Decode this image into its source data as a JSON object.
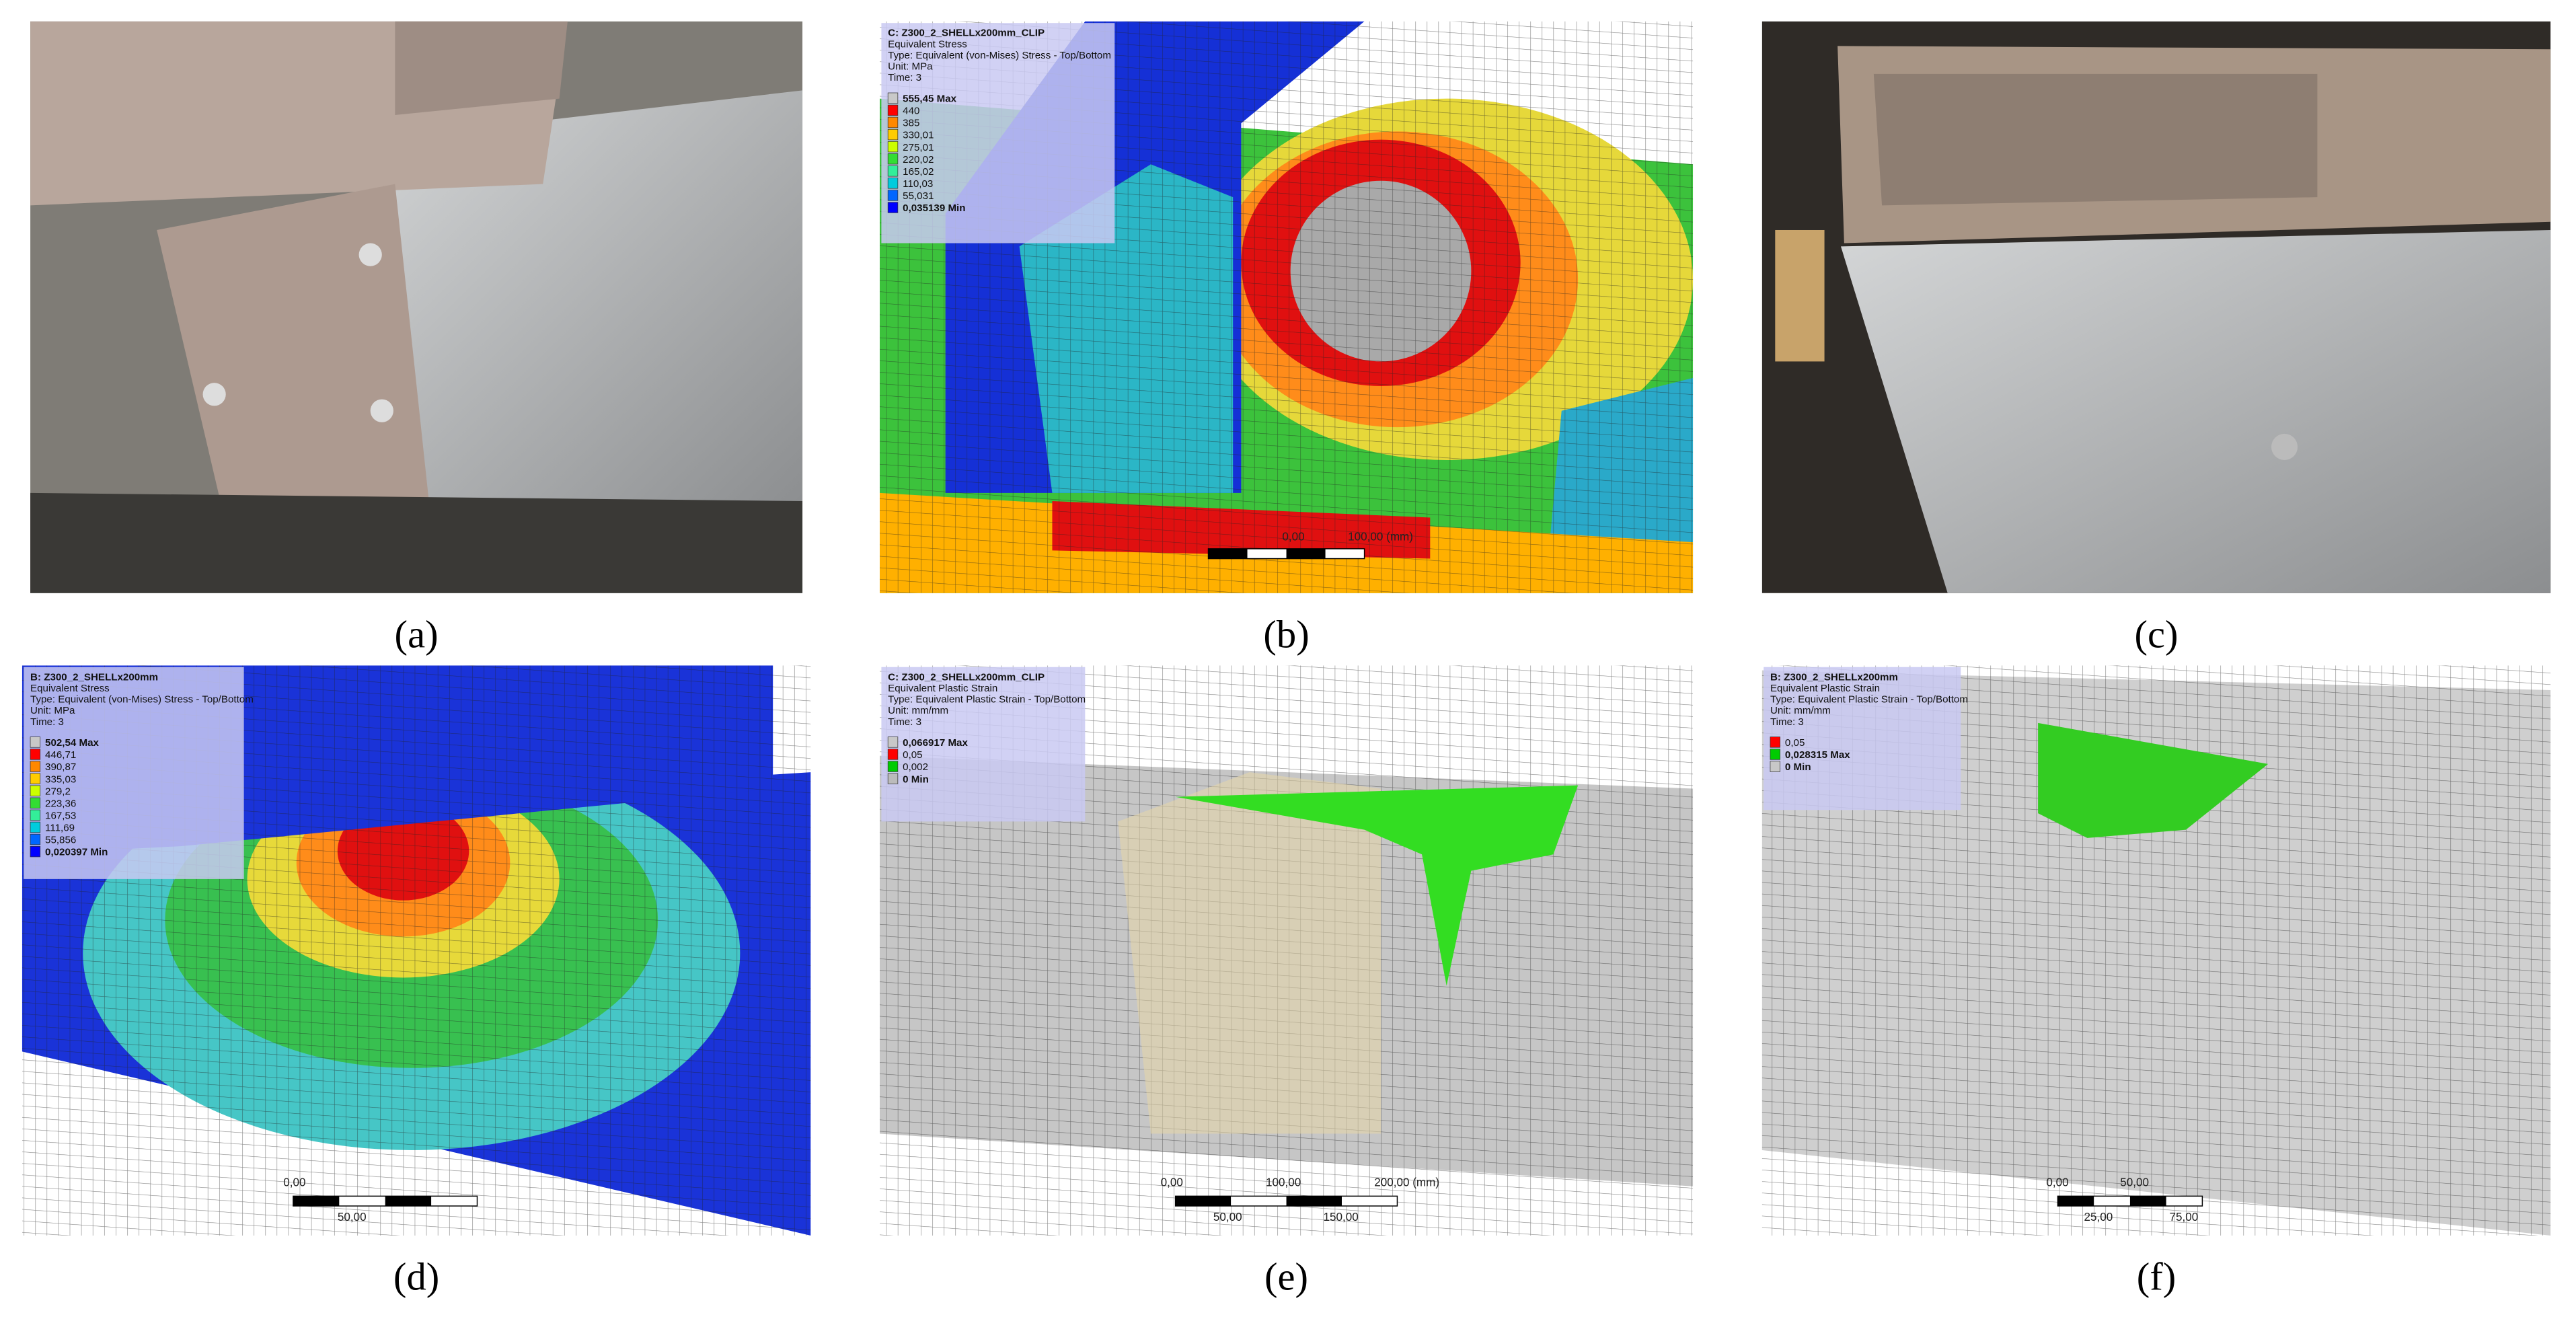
{
  "panels": [
    {
      "caption": "(a)"
    },
    {
      "caption": "(b)",
      "legend": {
        "lines": [
          "C: Z300_2_SHELLx200mm_CLIP",
          "Equivalent Stress",
          "Type: Equivalent (von-Mises) Stress - Top/Bottom",
          "Unit: MPa",
          "Time: 3"
        ],
        "entries": [
          "555,45 Max",
          "440",
          "385",
          "330,01",
          "275,01",
          "220,02",
          "165,02",
          "110,03",
          "55,031",
          "0,035139 Min"
        ]
      },
      "scale": [
        "0,00",
        "100,00 (mm)"
      ]
    },
    {
      "caption": "(c)"
    },
    {
      "caption": "(d)",
      "legend": {
        "lines": [
          "B: Z300_2_SHELLx200mm",
          "Equivalent Stress",
          "Type: Equivalent (von-Mises) Stress - Top/Bottom",
          "Unit: MPa",
          "Time: 3"
        ],
        "entries": [
          "502,54 Max",
          "446,71",
          "390,87",
          "335,03",
          "279,2",
          "223,36",
          "167,53",
          "111,69",
          "55,856",
          "0,020397 Min"
        ]
      },
      "scale": [
        "0,00",
        "50,00"
      ]
    },
    {
      "caption": "(e)",
      "legend": {
        "lines": [
          "C: Z300_2_SHELLx200mm_CLIP",
          "Equivalent Plastic Strain",
          "Type: Equivalent Plastic Strain - Top/Bottom",
          "Unit: mm/mm",
          "Time: 3"
        ],
        "entries": [
          "0,066917 Max",
          "0,05",
          "0,002",
          "0 Min"
        ]
      },
      "scale": [
        "0,00",
        "100,00",
        "200,00 (mm)",
        "50,00",
        "150,00"
      ]
    },
    {
      "caption": "(f)",
      "legend": {
        "lines": [
          "B: Z300_2_SHELLx200mm",
          "Equivalent Plastic Strain",
          "Type: Equivalent Plastic Strain - Top/Bottom",
          "Unit: mm/mm",
          "Time: 3"
        ],
        "entries": [
          "0,05",
          "0,028315 Max",
          "0 Min"
        ]
      },
      "scale": [
        "0,00",
        "50,00",
        "25,00",
        "75,00"
      ]
    }
  ]
}
